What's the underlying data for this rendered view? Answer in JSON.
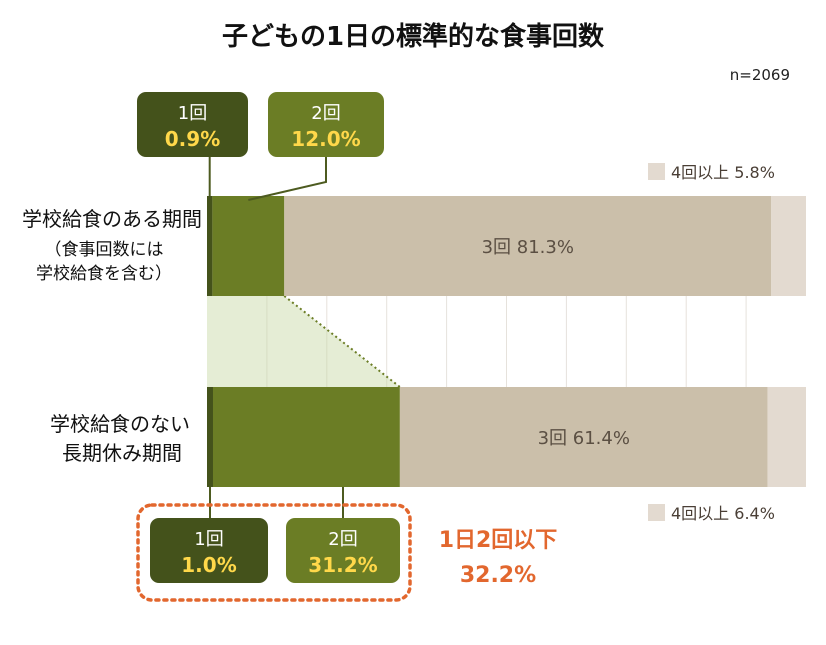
{
  "chart_data": {
    "type": "bar",
    "orientation": "horizontal",
    "stacked": true,
    "title": "子どもの1日の標準的な食事回数",
    "sample_size": "n=2069",
    "xlim": [
      0,
      100
    ],
    "colors": {
      "one": "#44521b",
      "two": "#6b7d25",
      "three": "#cbbfaa",
      "four_plus": "#e3dad0",
      "connector": "#c5d7a1",
      "highlight": "#e2672e",
      "callout_value": "#ffd84a",
      "grid": "#e6e2dc"
    },
    "categories": [
      {
        "label": "学校給食のある期間",
        "sublabel": [
          "（食事回数には",
          "学校給食を含む）"
        ]
      },
      {
        "label": "学校給食のない",
        "label2": "長期休み期間"
      }
    ],
    "series": [
      {
        "name": "1回",
        "values": [
          0.9,
          1.0
        ],
        "labels": [
          "0.9%",
          "1.0%"
        ]
      },
      {
        "name": "2回",
        "values": [
          12.0,
          31.2
        ],
        "labels": [
          "12.0%",
          "31.2%"
        ]
      },
      {
        "name": "3回",
        "values": [
          81.3,
          61.4
        ],
        "labels": [
          "3回 81.3%",
          "3回 61.4%"
        ]
      },
      {
        "name": "4回以上",
        "values": [
          5.8,
          6.4
        ],
        "labels": [
          "4回以上 5.8%",
          "4回以上 6.4%"
        ]
      }
    ],
    "callouts": [
      {
        "name": "1回",
        "top": "0.9%",
        "bottom": "1.0%"
      },
      {
        "name": "2回",
        "top": "12.0%",
        "bottom": "31.2%"
      }
    ],
    "highlight": {
      "line1": "1日2回以下",
      "line2": "32.2%"
    }
  }
}
